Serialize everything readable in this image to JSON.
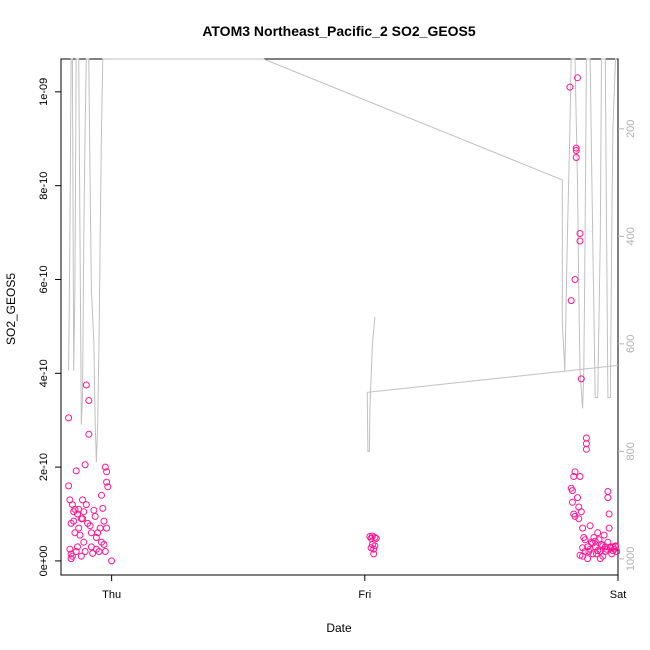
{
  "chart_data": {
    "type": "scatter",
    "title": "ATOM3 Northeast_Pacific_2 SO2_GEOS5",
    "xlabel": "Date",
    "ylabel": "SO2_GEOS5",
    "x_ticks": [
      "Thu",
      "Fri",
      "Sat"
    ],
    "y_ticks": [
      "0e+00",
      "2e-10",
      "4e-10",
      "6e-10",
      "8e-10",
      "1e-09"
    ],
    "y_tick_values": [
      0,
      2e-10,
      4e-10,
      6e-10,
      8e-10,
      1e-09
    ],
    "y2_ticks": [
      "200",
      "400",
      "600",
      "800",
      "1000"
    ],
    "y2_tick_values": [
      200,
      400,
      600,
      800,
      1000
    ],
    "xlim_days": [
      -0.2,
      2.0
    ],
    "ylim": [
      -3e-11,
      1.07e-09
    ],
    "y2lim": [
      1030,
      70
    ],
    "point_color": "#ff1493",
    "line_color": "#c0c0c0",
    "grid": false,
    "series": [
      {
        "kind": "points",
        "points": [
          [
            -0.17,
            3.05e-10
          ],
          [
            -0.17,
            1.6e-10
          ],
          [
            -0.165,
            1.3e-10
          ],
          [
            -0.16,
            8e-11
          ],
          [
            -0.165,
            2.5e-11
          ],
          [
            -0.16,
            1.5e-11
          ],
          [
            -0.155,
            1e-11
          ],
          [
            -0.16,
            5e-12
          ],
          [
            -0.155,
            1.2e-10
          ],
          [
            -0.15,
            1.05e-10
          ],
          [
            -0.15,
            8.5e-11
          ],
          [
            -0.145,
            6e-11
          ],
          [
            -0.14,
            1.92e-10
          ],
          [
            -0.14,
            2e-11
          ],
          [
            -0.135,
            3e-11
          ],
          [
            -0.13,
            1.1e-10
          ],
          [
            -0.13,
            7e-11
          ],
          [
            -0.125,
            5.5e-11
          ],
          [
            -0.12,
            9e-11
          ],
          [
            -0.12,
            1e-11
          ],
          [
            -0.115,
            1.3e-10
          ],
          [
            -0.11,
            1.05e-10
          ],
          [
            -0.11,
            4e-11
          ],
          [
            -0.105,
            2e-11
          ],
          [
            -0.1,
            3.75e-10
          ],
          [
            -0.1,
            1.2e-10
          ],
          [
            -0.095,
            8e-11
          ],
          [
            -0.09,
            3.42e-10
          ],
          [
            -0.09,
            2.7e-10
          ],
          [
            -0.085,
            7.5e-11
          ],
          [
            -0.08,
            6e-11
          ],
          [
            -0.08,
            3e-11
          ],
          [
            -0.075,
            1.6e-11
          ],
          [
            -0.07,
            1.08e-10
          ],
          [
            -0.065,
            9.5e-11
          ],
          [
            -0.06,
            2.5e-11
          ],
          [
            -0.055,
            6e-11
          ],
          [
            -0.05,
            2e-11
          ],
          [
            -0.045,
            7e-11
          ],
          [
            -0.04,
            4e-11
          ],
          [
            -0.04,
            1.4e-10
          ],
          [
            -0.035,
            1.12e-10
          ],
          [
            -0.03,
            8.5e-11
          ],
          [
            -0.03,
            3.5e-11
          ],
          [
            -0.025,
            2e-11
          ],
          [
            -0.025,
            2e-10
          ],
          [
            -0.02,
            1.9e-10
          ],
          [
            -0.02,
            1.68e-10
          ],
          [
            -0.015,
            1.58e-10
          ],
          [
            -0.02,
            7e-11
          ],
          [
            -0.105,
            2.05e-10
          ],
          [
            -0.115,
            9e-11
          ],
          [
            -0.135,
            1e-10
          ],
          [
            -0.145,
            1.1e-10
          ],
          [
            -0.06,
            5e-11
          ],
          [
            0.0,
            0.0
          ],
          [
            1.02,
            5.2e-11
          ],
          [
            1.025,
            4.8e-11
          ],
          [
            1.03,
            5.3e-11
          ],
          [
            1.03,
            3.5e-11
          ],
          [
            1.035,
            2.5e-11
          ],
          [
            1.035,
            1.5e-11
          ],
          [
            1.04,
            3.2e-11
          ],
          [
            1.04,
            5e-11
          ],
          [
            1.045,
            4.8e-11
          ],
          [
            1.025,
            2.8e-11
          ],
          [
            1.81,
            1.01e-09
          ],
          [
            1.815,
            1.55e-10
          ],
          [
            1.815,
            5.55e-10
          ],
          [
            1.82,
            1.5e-10
          ],
          [
            1.82,
            1.25e-10
          ],
          [
            1.825,
            1.8e-10
          ],
          [
            1.825,
            1e-10
          ],
          [
            1.83,
            6e-10
          ],
          [
            1.83,
            1.9e-10
          ],
          [
            1.835,
            8.8e-10
          ],
          [
            1.835,
            8.75e-10
          ],
          [
            1.835,
            8.6e-10
          ],
          [
            1.84,
            1.03e-09
          ],
          [
            1.84,
            1.35e-10
          ],
          [
            1.845,
            9e-11
          ],
          [
            1.85,
            6.98e-10
          ],
          [
            1.85,
            6.82e-10
          ],
          [
            1.85,
            1.8e-10
          ],
          [
            1.855,
            3.88e-10
          ],
          [
            1.855,
            1.05e-10
          ],
          [
            1.86,
            1e-11
          ],
          [
            1.86,
            7e-11
          ],
          [
            1.865,
            5e-11
          ],
          [
            1.87,
            2e-11
          ],
          [
            1.875,
            2.62e-10
          ],
          [
            1.875,
            2.5e-10
          ],
          [
            1.875,
            2.38e-10
          ],
          [
            1.88,
            3e-11
          ],
          [
            1.885,
            2e-11
          ],
          [
            1.89,
            7.5e-11
          ],
          [
            1.895,
            4e-11
          ],
          [
            1.9,
            1.5e-11
          ],
          [
            1.905,
            5e-11
          ],
          [
            1.91,
            3e-11
          ],
          [
            1.915,
            1.5e-11
          ],
          [
            1.92,
            6e-11
          ],
          [
            1.925,
            4.5e-11
          ],
          [
            1.93,
            2e-11
          ],
          [
            1.935,
            3.5e-11
          ],
          [
            1.94,
            1e-11
          ],
          [
            1.945,
            5.5e-11
          ],
          [
            1.95,
            3e-11
          ],
          [
            1.955,
            2.5e-11
          ],
          [
            1.96,
            1.48e-10
          ],
          [
            1.96,
            1.35e-10
          ],
          [
            1.965,
            1e-10
          ],
          [
            1.965,
            7e-11
          ],
          [
            1.97,
            3e-11
          ],
          [
            1.975,
            1.5e-11
          ],
          [
            1.98,
            3e-11
          ],
          [
            1.985,
            2.5e-11
          ],
          [
            1.99,
            3e-11
          ],
          [
            1.995,
            2e-11
          ],
          [
            1.87,
            4.5e-11
          ],
          [
            1.88,
            5e-12
          ],
          [
            1.86,
            2.8e-11
          ],
          [
            1.85,
            1.2e-11
          ],
          [
            1.845,
            1.15e-10
          ],
          [
            1.83,
            9.5e-11
          ],
          [
            1.89,
            2.5e-11
          ],
          [
            1.9,
            3.8e-11
          ],
          [
            1.91,
            4.2e-11
          ],
          [
            1.92,
            2.2e-11
          ],
          [
            1.93,
            5e-12
          ],
          [
            1.94,
            3.2e-11
          ],
          [
            1.95,
            2e-11
          ],
          [
            1.96,
            4e-11
          ],
          [
            1.97,
            2.8e-11
          ],
          [
            1.98,
            2.2e-11
          ],
          [
            1.99,
            3.2e-11
          ]
        ]
      },
      {
        "kind": "line",
        "axis": "right",
        "segments": [
          [
            [
              -0.17,
              650
            ],
            [
              -0.165,
              400
            ],
            [
              -0.16,
              70
            ],
            [
              -0.155,
              70
            ],
            [
              -0.15,
              650
            ],
            [
              -0.145,
              500
            ],
            [
              -0.14,
              70
            ],
            [
              -0.13,
              70
            ],
            [
              -0.125,
              400
            ],
            [
              -0.12,
              750
            ],
            [
              -0.115,
              700
            ],
            [
              -0.11,
              400
            ],
            [
              -0.105,
              200
            ],
            [
              -0.1,
              70
            ],
            [
              -0.09,
              70
            ],
            [
              -0.085,
              300
            ],
            [
              -0.08,
              500
            ],
            [
              -0.07,
              600
            ],
            [
              -0.065,
              750
            ],
            [
              -0.06,
              820
            ],
            [
              -0.055,
              750
            ],
            [
              -0.05,
              600
            ],
            [
              -0.045,
              400
            ],
            [
              -0.04,
              200
            ],
            [
              -0.035,
              70
            ],
            [
              -0.02,
              70
            ]
          ],
          [
            [
              -0.02,
              70
            ],
            [
              0.6,
              70
            ],
            [
              1.78,
              295
            ],
            [
              1.78,
              560
            ],
            [
              1.79,
              650
            ],
            [
              1.8,
              400
            ],
            [
              1.81,
              200
            ],
            [
              1.815,
              70
            ],
            [
              1.83,
              70
            ],
            [
              1.84,
              300
            ],
            [
              1.845,
              500
            ],
            [
              1.85,
              650
            ],
            [
              1.86,
              720
            ],
            [
              1.865,
              650
            ],
            [
              1.87,
              400
            ],
            [
              1.875,
              70
            ],
            [
              1.89,
              70
            ],
            [
              1.9,
              400
            ],
            [
              1.91,
              700
            ],
            [
              1.92,
              700
            ],
            [
              1.93,
              400
            ],
            [
              1.935,
              70
            ],
            [
              1.95,
              70
            ],
            [
              1.955,
              400
            ],
            [
              1.96,
              700
            ],
            [
              1.97,
              700
            ],
            [
              1.975,
              400
            ],
            [
              1.98,
              200
            ],
            [
              1.99,
              70
            ],
            [
              1.995,
              70
            ]
          ],
          [
            [
              1.01,
              700
            ],
            [
              1.012,
              800
            ],
            [
              1.018,
              800
            ],
            [
              1.02,
              720
            ],
            [
              1.03,
              600
            ],
            [
              1.04,
              550
            ]
          ],
          [
            [
              1.01,
              700
            ],
            [
              1.01,
              690
            ],
            [
              2.0,
              640
            ]
          ]
        ]
      }
    ]
  }
}
